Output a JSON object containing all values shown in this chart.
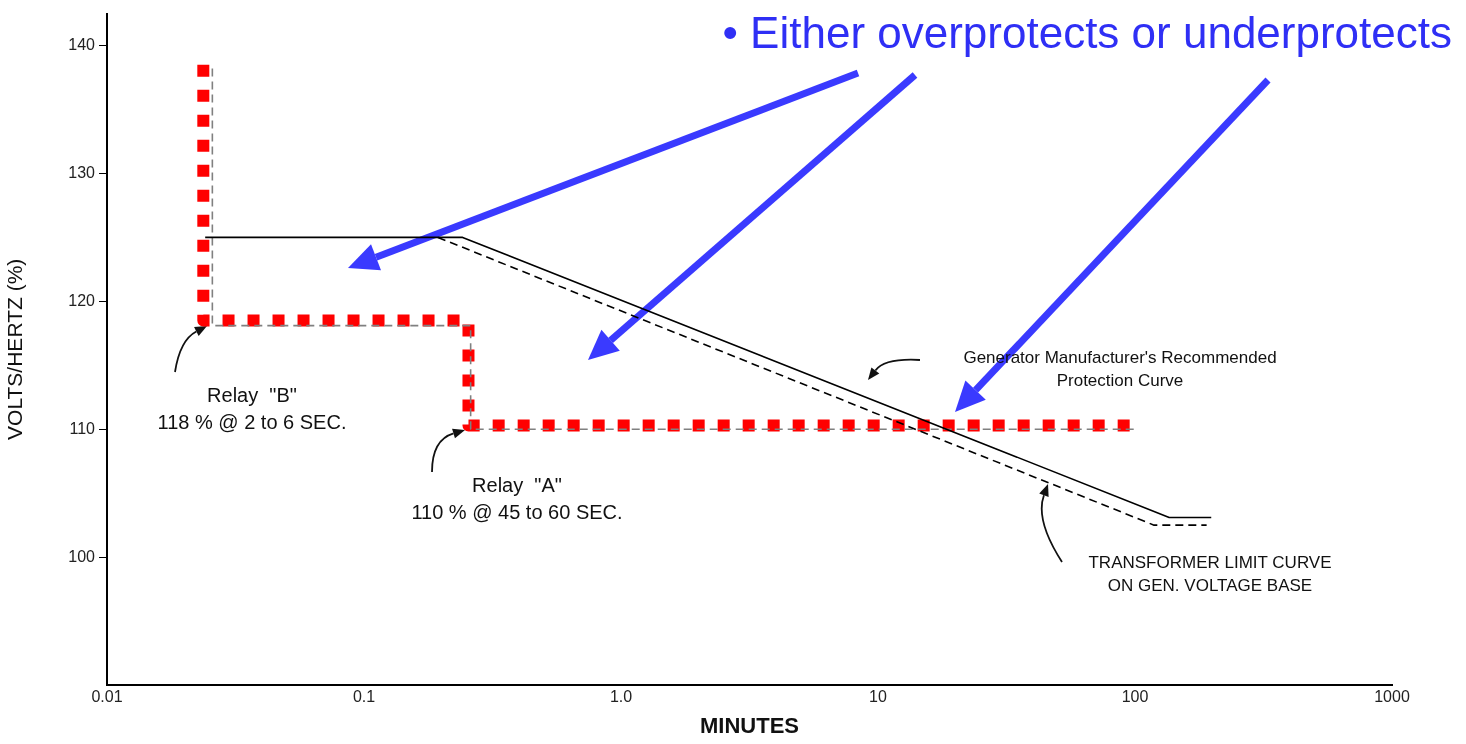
{
  "chart_data": {
    "type": "line",
    "title": "• Either overprotects or underprotects",
    "xlabel": "MINUTES",
    "ylabel": "VOLTS/HERTZ (%)",
    "log": "x",
    "xlim": [
      0.01,
      1000
    ],
    "xticks": [
      {
        "value": 0.01,
        "label": "0.01"
      },
      {
        "value": 0.1,
        "label": "0.1"
      },
      {
        "value": 1,
        "label": "1.0"
      },
      10,
      100,
      1000
    ],
    "ylim": [
      90,
      142.5
    ],
    "yticks": [
      100,
      110,
      120,
      130,
      140
    ],
    "grid": false,
    "legend": false,
    "series": [
      {
        "color": "#000000",
        "line_style": "solid",
        "x": [
          0.0241,
          0.242,
          135.8,
          198
        ],
        "values": [
          125,
          125,
          103.1,
          103.1
        ]
      },
      {
        "color": "#000000",
        "line_style": "dashed",
        "x": [
          0.194,
          118.6,
          190
        ],
        "values": [
          125,
          102.5,
          102.5
        ]
      },
      {
        "color": "#808080",
        "line_style": "dashed",
        "x": [
          0.0257,
          0.0257,
          0.26,
          0.26,
          100
        ],
        "values": [
          138.2,
          118.1,
          118.1,
          110,
          110
        ]
      },
      {
        "color": "#ff0000",
        "line_style": "dotted",
        "x": [
          0.0237,
          0.0237,
          0.255,
          0.255,
          100
        ],
        "values": [
          138.5,
          118.5,
          118.5,
          110.3,
          110.3
        ]
      }
    ],
    "annotations": [
      "Relay  \"B\"\n118 % @ 2 to 6 SEC.",
      "Relay  \"A\"\n110 % @ 45 to 60 SEC.",
      "Generator Manufacturer's Recommended\nProtection Curve",
      "TRANSFORMER LIMIT CURVE\nON GEN. VOLTAGE BASE"
    ]
  }
}
